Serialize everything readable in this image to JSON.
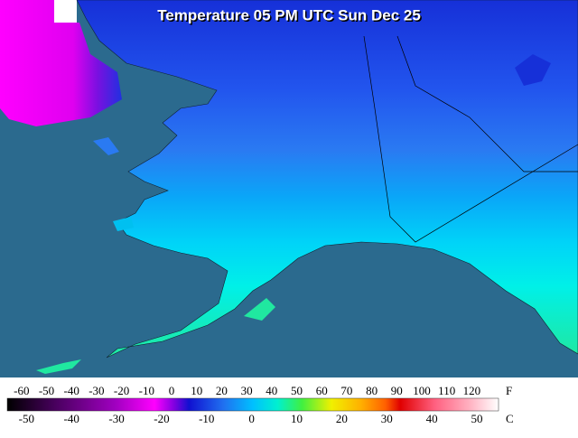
{
  "title": "Temperature 05 PM UTC Sun Dec 25",
  "colorbar": {
    "f_unit": "F",
    "c_unit": "C",
    "f_labels": [
      -60,
      -50,
      -40,
      -30,
      -20,
      -10,
      0,
      10,
      20,
      30,
      40,
      50,
      60,
      70,
      80,
      90,
      100,
      110,
      120
    ],
    "c_labels": [
      -50,
      -40,
      -30,
      -20,
      -10,
      0,
      10,
      20,
      30,
      40,
      50
    ]
  }
}
